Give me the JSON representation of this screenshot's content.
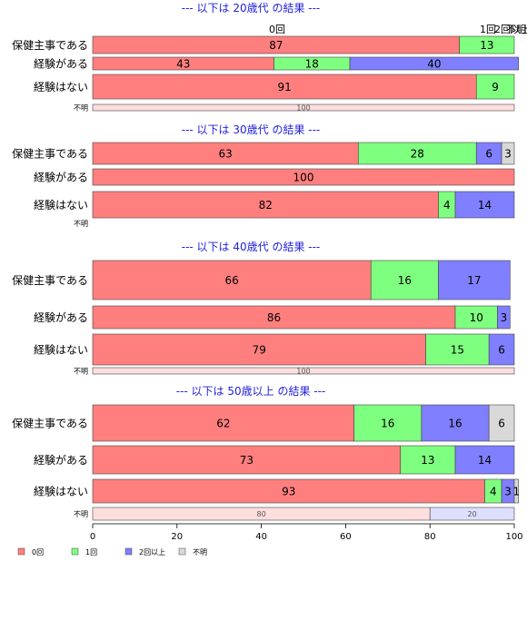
{
  "chart_data": {
    "type": "bar",
    "stacked": "percent",
    "orientation": "horizontal",
    "colors": {
      "0回": "#ff7f7f",
      "1回": "#7fff7f",
      "2回以上": "#7f7fff",
      "不明": "#d9d9d9"
    },
    "top_labels": [
      "0回",
      "1回",
      "2回以上",
      "不明"
    ],
    "xaxis": {
      "ticks": [
        0,
        20,
        40,
        60,
        80,
        100
      ],
      "xlim": [
        0,
        100
      ]
    },
    "legend": {
      "position": "bottom-left",
      "items": [
        "0回",
        "1回",
        "2回以上",
        "不明"
      ]
    },
    "groups": [
      {
        "title": "--- 以下は 20歳代 の結果 ---",
        "rows": [
          {
            "label": "保健主事である",
            "size": "large",
            "values": [
              87,
              13,
              0,
              0
            ]
          },
          {
            "label": "経験がある",
            "size": "small",
            "values": [
              43,
              18,
              40,
              0
            ]
          },
          {
            "label": "経験はない",
            "size": "large",
            "values": [
              91,
              9,
              0,
              0
            ]
          },
          {
            "label": "不明",
            "size": "tiny",
            "values": [
              100,
              0,
              0,
              0
            ]
          }
        ]
      },
      {
        "title": "--- 以下は 30歳代 の結果 ---",
        "rows": [
          {
            "label": "保健主事である",
            "size": "large",
            "values": [
              63,
              28,
              6,
              3
            ]
          },
          {
            "label": "経験がある",
            "size": "small",
            "values": [
              100,
              0,
              0,
              0
            ]
          },
          {
            "label": "経験はない",
            "size": "large",
            "values": [
              82,
              4,
              14,
              0
            ]
          },
          {
            "label": "不明",
            "size": "empty",
            "values": []
          }
        ]
      },
      {
        "title": "--- 以下は 40歳代 の結果 ---",
        "rows": [
          {
            "label": "保健主事である",
            "size": "large",
            "values": [
              66,
              16,
              17,
              0
            ]
          },
          {
            "label": "経験がある",
            "size": "small",
            "values": [
              86,
              10,
              3,
              0
            ]
          },
          {
            "label": "経験はない",
            "size": "large",
            "values": [
              79,
              15,
              6,
              0
            ]
          },
          {
            "label": "不明",
            "size": "tiny",
            "values": [
              100,
              0,
              0,
              0
            ]
          }
        ]
      },
      {
        "title": "--- 以下は 50歳以上 の結果 ---",
        "rows": [
          {
            "label": "保健主事である",
            "size": "large",
            "values": [
              62,
              16,
              16,
              6
            ]
          },
          {
            "label": "経験がある",
            "size": "small",
            "values": [
              73,
              13,
              14,
              0
            ]
          },
          {
            "label": "経験はない",
            "size": "large",
            "values": [
              93,
              4,
              3,
              1
            ]
          },
          {
            "label": "不明",
            "size": "tiny",
            "values": [
              80,
              20,
              0,
              0
            ]
          }
        ]
      }
    ]
  }
}
